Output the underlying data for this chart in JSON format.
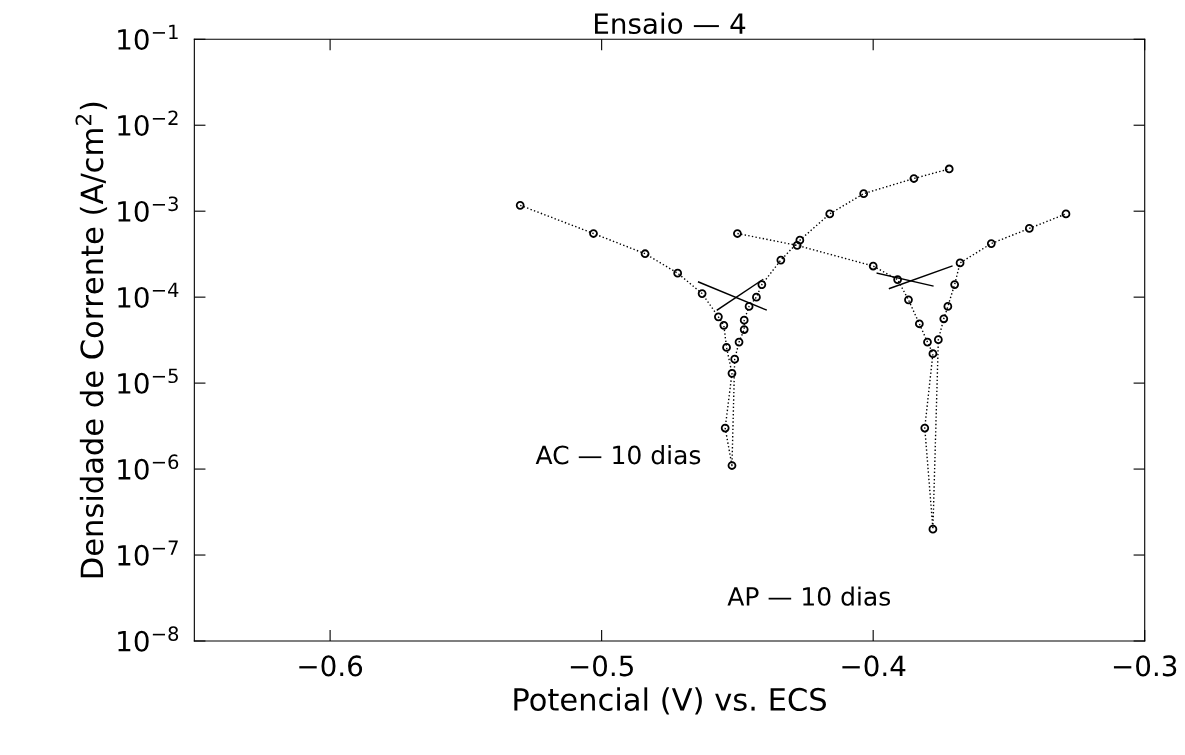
{
  "chart_data": {
    "type": "line",
    "title": "Ensaio — 4",
    "xlabel": "Potencial (V) vs. ECS",
    "ylabel": "Densidade de Corrente (A/cm$^{2}$)",
    "log": "y",
    "xlim": [
      -0.65,
      -0.3
    ],
    "xticks": [
      -0.6,
      -0.5,
      -0.4,
      -0.3
    ],
    "ylim": [
      1e-08,
      0.1
    ],
    "yticks": [
      {
        "value": 1e-08,
        "label": "10$^{−8}$"
      },
      {
        "value": 1e-07,
        "label": "10$^{−7}$"
      },
      {
        "value": 1e-06,
        "label": "10$^{−6}$"
      },
      {
        "value": 1e-05,
        "label": "10$^{−5}$"
      },
      {
        "value": 0.0001,
        "label": "10$^{−4}$"
      },
      {
        "value": 0.001,
        "label": "10$^{−3}$"
      },
      {
        "value": 0.01,
        "label": "10$^{−2}$"
      },
      {
        "value": 0.1,
        "label": "10$^{−1}$"
      }
    ],
    "grid": false,
    "legend": false,
    "marker": "circle",
    "line_style": "dotted",
    "series": [
      {
        "name": "AC — 10 dias",
        "color": "#000000",
        "x": [
          -0.53,
          -0.503,
          -0.484,
          -0.472,
          -0.463,
          -0.457,
          -0.455,
          -0.454,
          -0.452,
          -0.4545,
          -0.452,
          -0.451,
          -0.4494,
          -0.4475,
          -0.4475,
          -0.4457,
          -0.443,
          -0.441,
          -0.434,
          -0.427,
          -0.416,
          -0.4035,
          -0.385,
          -0.372
        ],
        "values": [
          0.00117,
          0.00055,
          0.00032,
          0.00019,
          0.00011,
          5.9e-05,
          4.7e-05,
          2.6e-05,
          1.3e-05,
          3e-06,
          1.1e-06,
          1.9e-05,
          3e-05,
          4.2e-05,
          5.4e-05,
          7.8e-05,
          0.0001,
          0.00014,
          0.00027,
          0.00046,
          0.00093,
          0.0016,
          0.0024,
          0.0031
        ]
      },
      {
        "name": "AP — 10 dias",
        "color": "#000000",
        "x": [
          -0.45,
          -0.428,
          -0.4,
          -0.391,
          -0.387,
          -0.383,
          -0.38,
          -0.378,
          -0.381,
          -0.378,
          -0.376,
          -0.374,
          -0.3725,
          -0.37,
          -0.368,
          -0.3565,
          -0.3425,
          -0.329
        ],
        "values": [
          0.00055,
          0.0004,
          0.00023,
          0.00016,
          9.3e-05,
          4.9e-05,
          3e-05,
          2.2e-05,
          3e-06,
          2e-07,
          3.2e-05,
          5.6e-05,
          7.8e-05,
          0.00014,
          0.00025,
          0.00042,
          0.00063,
          0.00093
        ]
      },
      {
        "type": "line",
        "color": "#000000",
        "marker": "none",
        "line_style": "solid",
        "x": [
          -0.4643,
          -0.4394
        ],
        "values": [
          0.00015,
          7.1e-05
        ]
      },
      {
        "type": "line",
        "color": "#000000",
        "marker": "none",
        "line_style": "solid",
        "x": [
          -0.4574,
          -0.4407
        ],
        "values": [
          7.1e-05,
          0.00016
        ]
      },
      {
        "type": "line",
        "color": "#000000",
        "marker": "none",
        "line_style": "solid",
        "x": [
          -0.3985,
          -0.378
        ],
        "values": [
          0.00019,
          0.000135
        ]
      },
      {
        "type": "line",
        "color": "#000000",
        "marker": "none",
        "line_style": "solid",
        "x": [
          -0.394,
          -0.371
        ],
        "values": [
          0.000126,
          0.00023
        ]
      }
    ]
  }
}
